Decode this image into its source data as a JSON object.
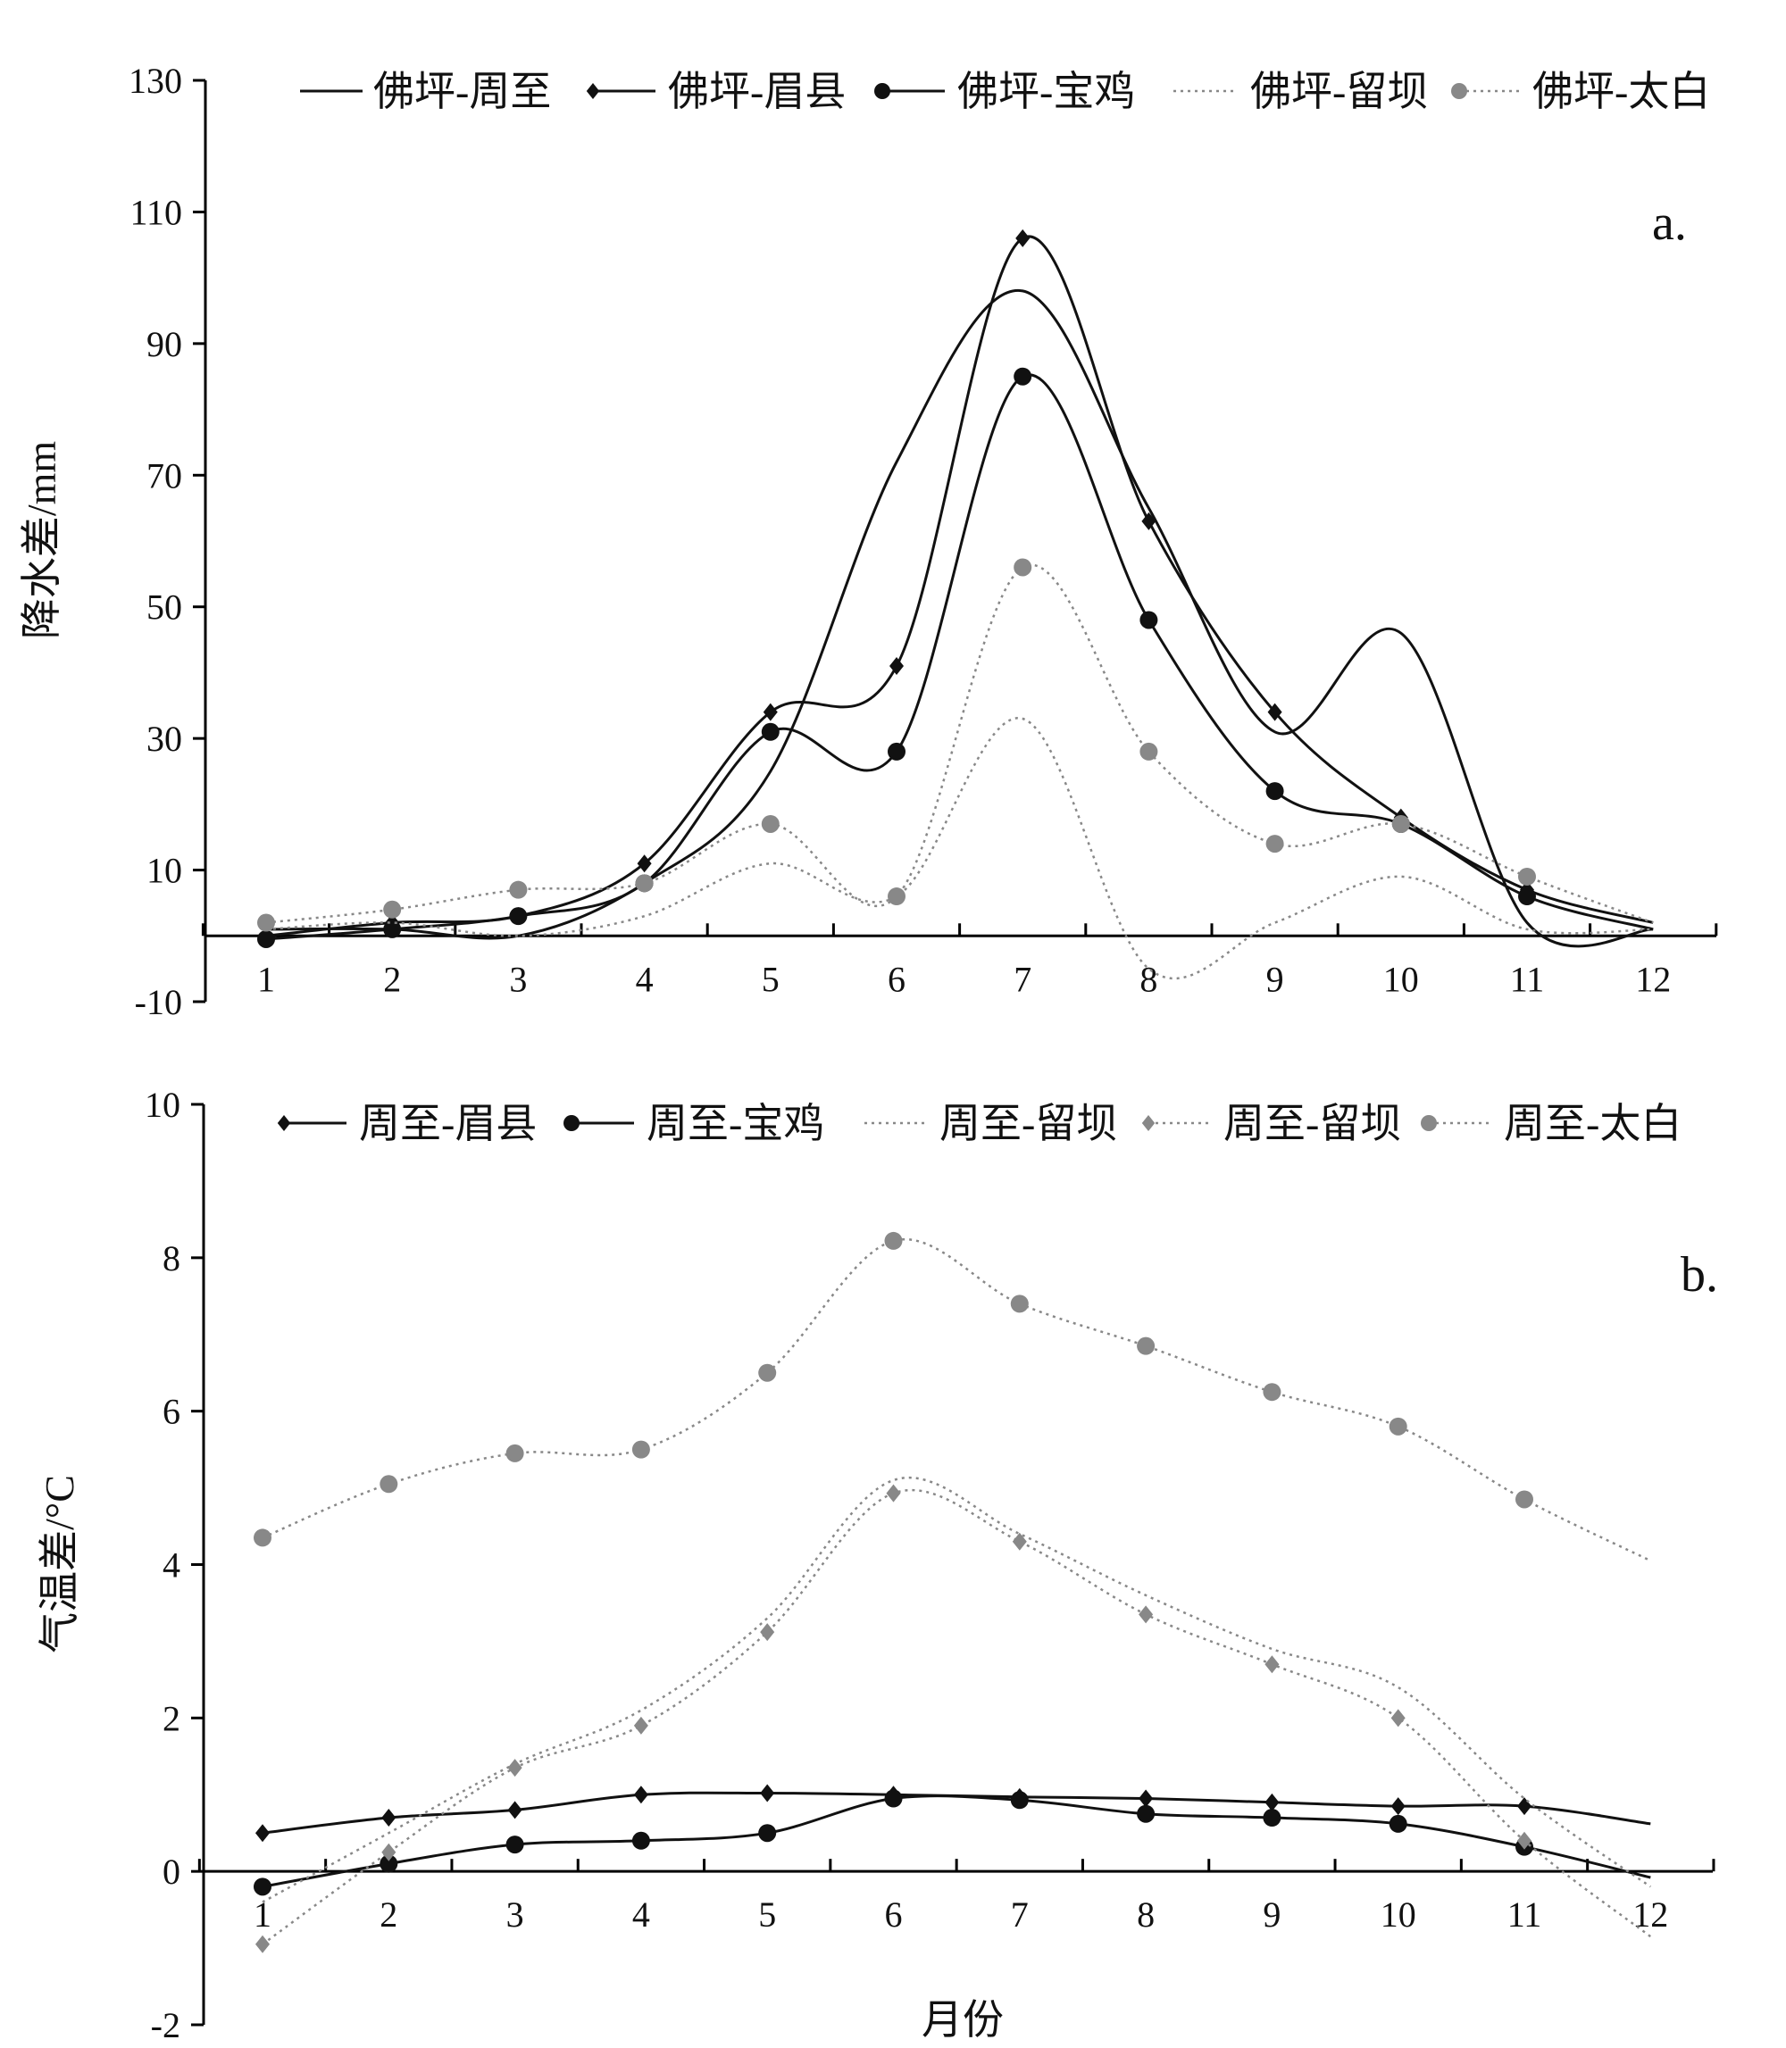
{
  "colors": {
    "black": "#111111",
    "gray": "#888888",
    "axis": "#000000"
  },
  "chart_data": [
    {
      "type": "line",
      "panel_label": "a.",
      "ylabel": "降水差/mm",
      "xlabel": "",
      "ylim": [
        -10,
        130
      ],
      "yticks": [
        -10,
        10,
        30,
        50,
        70,
        90,
        110,
        130
      ],
      "x": [
        1,
        2,
        3,
        4,
        5,
        6,
        7,
        8,
        9,
        10,
        11,
        12
      ],
      "series": [
        {
          "name": "佛坪-周至",
          "color": "#111111",
          "dash": false,
          "marker": "none",
          "values": [
            1,
            1,
            0,
            8,
            25,
            72,
            98,
            65,
            31,
            46,
            2,
            1
          ]
        },
        {
          "name": "佛坪-眉县",
          "color": "#111111",
          "dash": false,
          "marker": "diamond",
          "values": [
            0,
            2,
            3,
            11,
            34,
            41,
            106,
            63,
            34,
            18,
            7,
            2
          ]
        },
        {
          "name": "佛坪-宝鸡",
          "color": "#111111",
          "dash": false,
          "marker": "circle",
          "values": [
            -0.5,
            1,
            3,
            8,
            31,
            28,
            85,
            48,
            22,
            17,
            6,
            1
          ]
        },
        {
          "name": "佛坪-留坝",
          "color": "#888888",
          "dash": true,
          "marker": "none",
          "values": [
            1,
            2,
            0,
            3,
            11,
            6,
            33,
            -5,
            2,
            9,
            1,
            1
          ]
        },
        {
          "name": "佛坪-太白",
          "color": "#888888",
          "dash": true,
          "marker": "circle",
          "values": [
            2,
            4,
            7,
            8,
            17,
            6,
            56,
            28,
            14,
            17,
            9,
            2
          ]
        }
      ]
    },
    {
      "type": "line",
      "panel_label": "b.",
      "ylabel": "气温差/°C",
      "xlabel": "月份",
      "ylim": [
        -2,
        10
      ],
      "yticks": [
        -2,
        0,
        2,
        4,
        6,
        8,
        10
      ],
      "x": [
        1,
        2,
        3,
        4,
        5,
        6,
        7,
        8,
        9,
        10,
        11,
        12
      ],
      "series": [
        {
          "name": "周至-眉县",
          "color": "#111111",
          "dash": false,
          "marker": "diamond",
          "values": [
            0.5,
            0.7,
            0.8,
            1.0,
            1.02,
            1.0,
            0.97,
            0.95,
            0.9,
            0.85,
            0.85,
            0.62
          ]
        },
        {
          "name": "周至-宝鸡",
          "color": "#111111",
          "dash": false,
          "marker": "circle",
          "values": [
            -0.2,
            0.1,
            0.35,
            0.4,
            0.5,
            0.95,
            0.93,
            0.75,
            0.7,
            0.62,
            0.32,
            -0.08
          ]
        },
        {
          "name": "周至-留坝",
          "color": "#888888",
          "dash": true,
          "marker": "none",
          "values": [
            -0.4,
            0.5,
            1.4,
            2.1,
            3.3,
            5.1,
            4.4,
            3.6,
            2.9,
            2.4,
            0.95,
            -0.2
          ]
        },
        {
          "name": "周至-留坝",
          "color": "#888888",
          "dash": true,
          "marker": "diamond",
          "values": [
            -0.95,
            0.25,
            1.35,
            1.9,
            3.12,
            4.93,
            4.3,
            3.35,
            2.7,
            2.0,
            0.4,
            -0.85
          ]
        },
        {
          "name": "周至-太白",
          "color": "#888888",
          "dash": true,
          "marker": "circle",
          "values": [
            4.35,
            5.05,
            5.45,
            5.5,
            6.5,
            8.22,
            7.4,
            6.85,
            6.25,
            5.8,
            4.85,
            4.05
          ]
        }
      ]
    }
  ]
}
